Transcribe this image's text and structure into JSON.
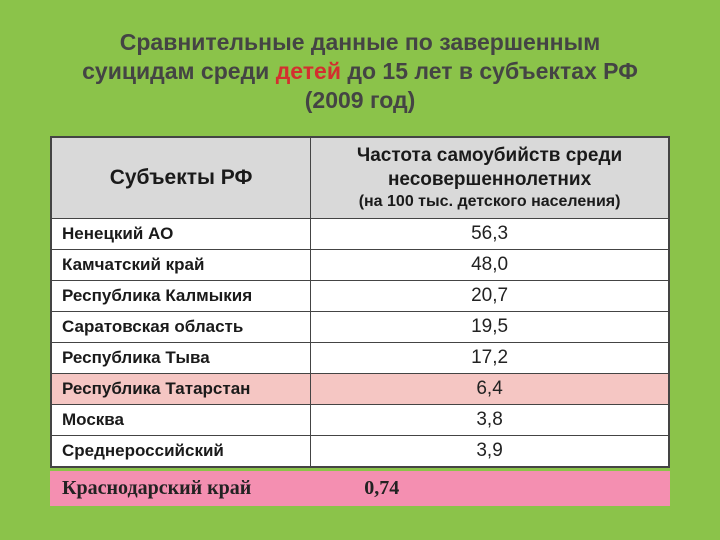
{
  "title": {
    "pre": "Сравнительные данные по завершенным суицидам среди ",
    "highlight": "детей",
    "post": " до 15 лет в  субъектах РФ (2009 год)"
  },
  "table": {
    "headers": {
      "region": "Субъекты РФ",
      "rate_main": "Частота самоубийств среди несовершеннолетних",
      "rate_sub": "(на 100 тыс. детского населения)"
    },
    "rows": [
      {
        "region": "Ненецкий АО",
        "rate": "56,3",
        "highlight": false
      },
      {
        "region": "Камчатский край",
        "rate": "48,0",
        "highlight": false
      },
      {
        "region": "Республика Калмыкия",
        "rate": "20,7",
        "highlight": false
      },
      {
        "region": "Саратовская область",
        "rate": "19,5",
        "highlight": false
      },
      {
        "region": "Республика Тыва",
        "rate": "17,2",
        "highlight": false
      },
      {
        "region": "Республика Татарстан",
        "rate": "6,4",
        "highlight": true
      },
      {
        "region": "Москва",
        "rate": "3,8",
        "highlight": false
      },
      {
        "region": "Среднероссийский",
        "rate": "3,9",
        "highlight": false
      }
    ],
    "footer": {
      "region": "Краснодарский край",
      "rate": "0,74"
    }
  },
  "colors": {
    "background": "#8bc34a",
    "header_bg": "#d9d9d9",
    "row_highlight": "#f5c6c3",
    "footer_bg": "#f48fb1",
    "title_highlight": "#d32f2f",
    "border": "#444444"
  }
}
